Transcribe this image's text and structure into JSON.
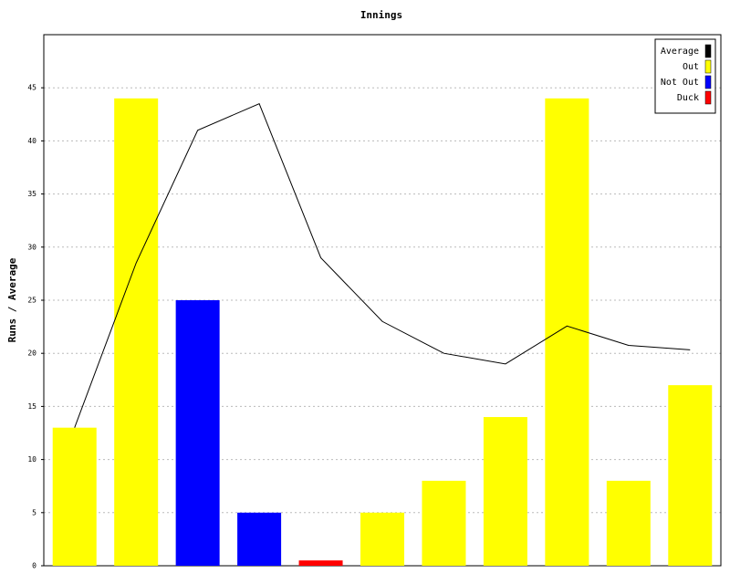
{
  "chart_data": {
    "type": "bar",
    "title": "Innings",
    "y_label": "Runs / Average",
    "ylim": [
      0,
      50
    ],
    "yticks": [
      0,
      5,
      10,
      15,
      20,
      25,
      30,
      35,
      40,
      45
    ],
    "grid": true,
    "legend": "upper right",
    "series": [
      {
        "name": "Average",
        "color": "#000000",
        "type": "line",
        "values": [
          13,
          28.5,
          41,
          43.5,
          29,
          23,
          20,
          19,
          22.57,
          20.75,
          20.33
        ]
      },
      {
        "name": "Out",
        "color": "#ffff00",
        "values": [
          13,
          44,
          null,
          null,
          null,
          5,
          8,
          14,
          44,
          8,
          17
        ]
      },
      {
        "name": "Not Out",
        "color": "#0000ff",
        "values": [
          null,
          null,
          25,
          5,
          null,
          null,
          null,
          null,
          null,
          null,
          null
        ]
      },
      {
        "name": "Duck",
        "color": "#ff0000",
        "values": [
          null,
          null,
          null,
          null,
          0.5,
          null,
          null,
          null,
          null,
          null,
          null
        ]
      }
    ]
  }
}
